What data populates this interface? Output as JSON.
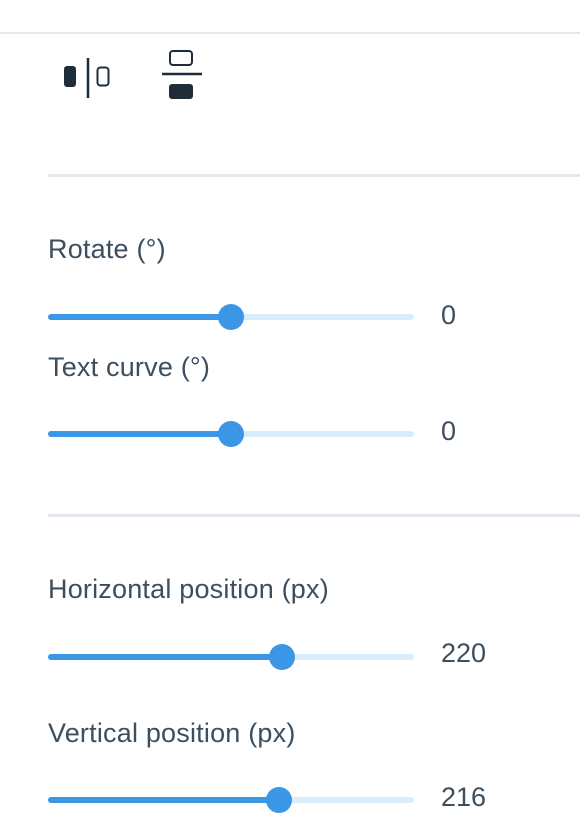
{
  "flip": {
    "horizontal_icon": "flip-horizontal-icon",
    "vertical_icon": "flip-vertical-icon"
  },
  "rotate": {
    "label": "Rotate (°)",
    "value": "0",
    "fraction": 0.5
  },
  "text_curve": {
    "label": "Text curve (°)",
    "value": "0",
    "fraction": 0.5
  },
  "horizontal_position": {
    "label": "Horizontal position (px)",
    "value": "220",
    "fraction": 0.64
  },
  "vertical_position": {
    "label": "Vertical position (px)",
    "value": "216",
    "fraction": 0.63
  },
  "colors": {
    "accent": "#3b96e5",
    "track": "#d9ecfb",
    "divider": "#e3e7ee",
    "text": "#3d4e5e",
    "icon": "#1f2d3a"
  }
}
